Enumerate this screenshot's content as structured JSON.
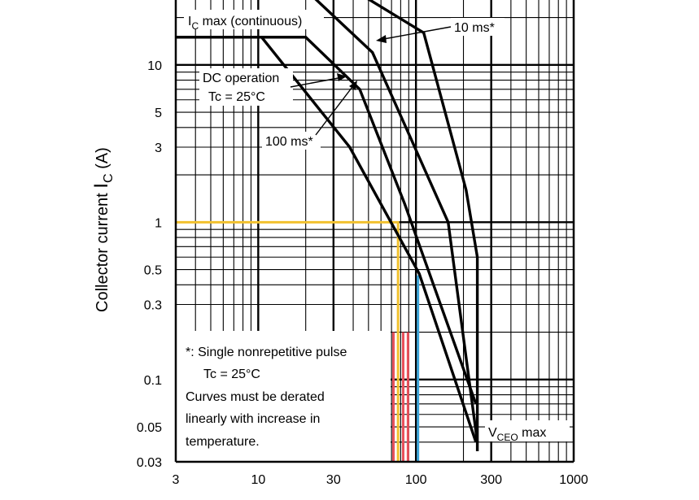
{
  "chart_data": {
    "type": "line",
    "x_scale": "log",
    "y_scale": "log",
    "xlim": [
      3,
      1000
    ],
    "ylim": [
      0.03,
      20
    ],
    "grid": true,
    "x_ticks": [
      {
        "value": 3,
        "label": "3"
      },
      {
        "value": 10,
        "label": "10"
      },
      {
        "value": 30,
        "label": "30"
      },
      {
        "value": 100,
        "label": "100"
      },
      {
        "value": 300,
        "label": "300"
      },
      {
        "value": 1000,
        "label": "1000"
      }
    ],
    "y_ticks": [
      {
        "value": 10,
        "label": "10"
      },
      {
        "value": 5,
        "label": "5"
      },
      {
        "value": 3,
        "label": "3"
      },
      {
        "value": 1,
        "label": "1"
      },
      {
        "value": 0.5,
        "label": "0.5"
      },
      {
        "value": 0.3,
        "label": "0.3"
      },
      {
        "value": 0.1,
        "label": "0.1"
      },
      {
        "value": 0.05,
        "label": "0.05"
      },
      {
        "value": 0.03,
        "label": "0.03"
      }
    ],
    "ylabel": {
      "main": "Collector current",
      "symbol": "I",
      "sub": "C",
      "unit": "(A)"
    },
    "series": [
      {
        "points": [
          [
            3,
            15
          ],
          [
            20,
            15
          ],
          [
            44,
            7
          ],
          [
            85,
            1.3
          ],
          [
            240,
            0.07
          ]
        ],
        "color": "#000000"
      },
      {
        "points": [
          [
            3,
            15
          ],
          [
            10.5,
            15
          ],
          [
            38,
            3
          ],
          [
            105,
            0.47
          ],
          [
            240,
            0.04
          ]
        ],
        "color": "#000000"
      },
      {
        "points": [
          [
            20,
            30
          ],
          [
            53,
            12
          ],
          [
            160,
            1.0
          ],
          [
            245,
            0.04
          ]
        ],
        "color": "#000000"
      },
      {
        "points": [
          [
            40,
            30
          ],
          [
            112,
            16
          ],
          [
            208,
            1.6
          ],
          [
            245,
            0.6
          ],
          [
            245,
            0.035
          ]
        ],
        "color": "#000000"
      }
    ],
    "highlights": [
      {
        "color": "#f2c12e",
        "points": [
          [
            3,
            1
          ],
          [
            77,
            1
          ],
          [
            77,
            0.03
          ]
        ]
      },
      {
        "color": "#e8505b",
        "points": [
          [
            72,
            0.2
          ],
          [
            72,
            0.03
          ]
        ]
      },
      {
        "color": "#e8505b",
        "points": [
          [
            83,
            0.2
          ],
          [
            83,
            0.03
          ]
        ]
      },
      {
        "color": "#e8505b",
        "points": [
          [
            89,
            0.2
          ],
          [
            89,
            0.03
          ]
        ]
      },
      {
        "color": "#3aa4d8",
        "points": [
          [
            103,
            0.46
          ],
          [
            103,
            0.03
          ]
        ]
      }
    ],
    "annotations": {
      "ic_max": {
        "main": "I",
        "sub": "C",
        "rest": " max (continuous)"
      },
      "ms10": "10 ms*",
      "dc1": "DC operation",
      "dc2": "Tc = 25°C",
      "ms100": "100 ms*",
      "vceo": {
        "main": "V",
        "sub": "CEO",
        "rest": " max"
      }
    },
    "note_lines": [
      "*:  Single nonrepetitive pulse",
      "Tc = 25°C",
      "Curves must be derated",
      "linearly with increase in",
      "temperature."
    ]
  }
}
